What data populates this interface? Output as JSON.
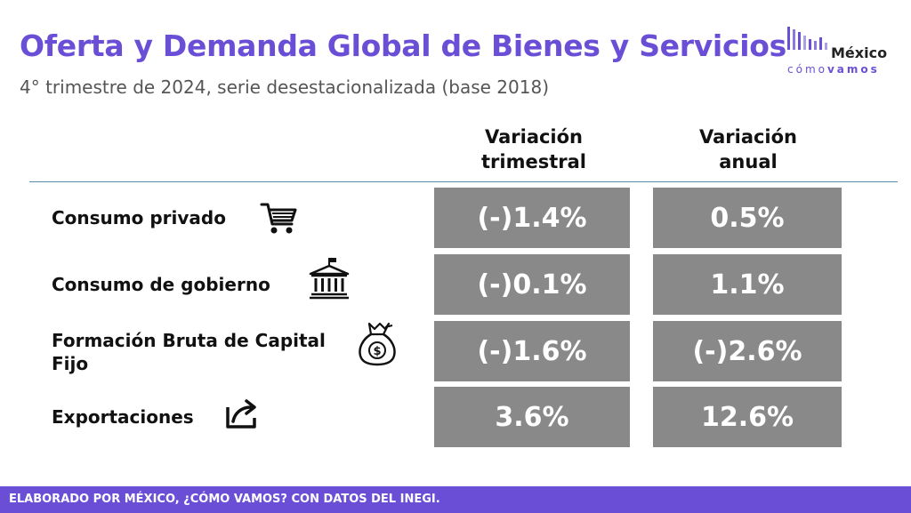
{
  "header": {
    "title": "Oferta y Demanda Global de Bienes y Servicios",
    "subtitle": "4° trimestre de 2024, serie desestacionalizada (base 2018)"
  },
  "logo": {
    "name": "México",
    "tagline_light": "cómo",
    "tagline_bold": "vamos"
  },
  "columns": {
    "quarterly": [
      "Variación",
      "trimestral"
    ],
    "annual": [
      "Variación",
      "anual"
    ]
  },
  "rows": [
    {
      "label": "Consumo privado",
      "icon": "shopping-cart-icon",
      "quarterly": "(-)1.4%",
      "annual": "0.5%"
    },
    {
      "label": "Consumo de gobierno",
      "icon": "government-building-icon",
      "quarterly": "(-)0.1%",
      "annual": "1.1%"
    },
    {
      "label_lines": [
        "Formación Bruta de Capital",
        "Fijo"
      ],
      "icon": "money-bag-icon",
      "quarterly": "(-)1.6%",
      "annual": "(-)2.6%"
    },
    {
      "label": "Exportaciones",
      "icon": "export-arrow-icon",
      "quarterly": "3.6%",
      "annual": "12.6%"
    }
  ],
  "footer": {
    "text": "ELABORADO POR MÉXICO, ¿CÓMO VAMOS? CON DATOS DEL INEGI."
  },
  "colors": {
    "accent": "#6a4fd6",
    "cell_background": "#898989",
    "divider": "#5a8ca6"
  }
}
